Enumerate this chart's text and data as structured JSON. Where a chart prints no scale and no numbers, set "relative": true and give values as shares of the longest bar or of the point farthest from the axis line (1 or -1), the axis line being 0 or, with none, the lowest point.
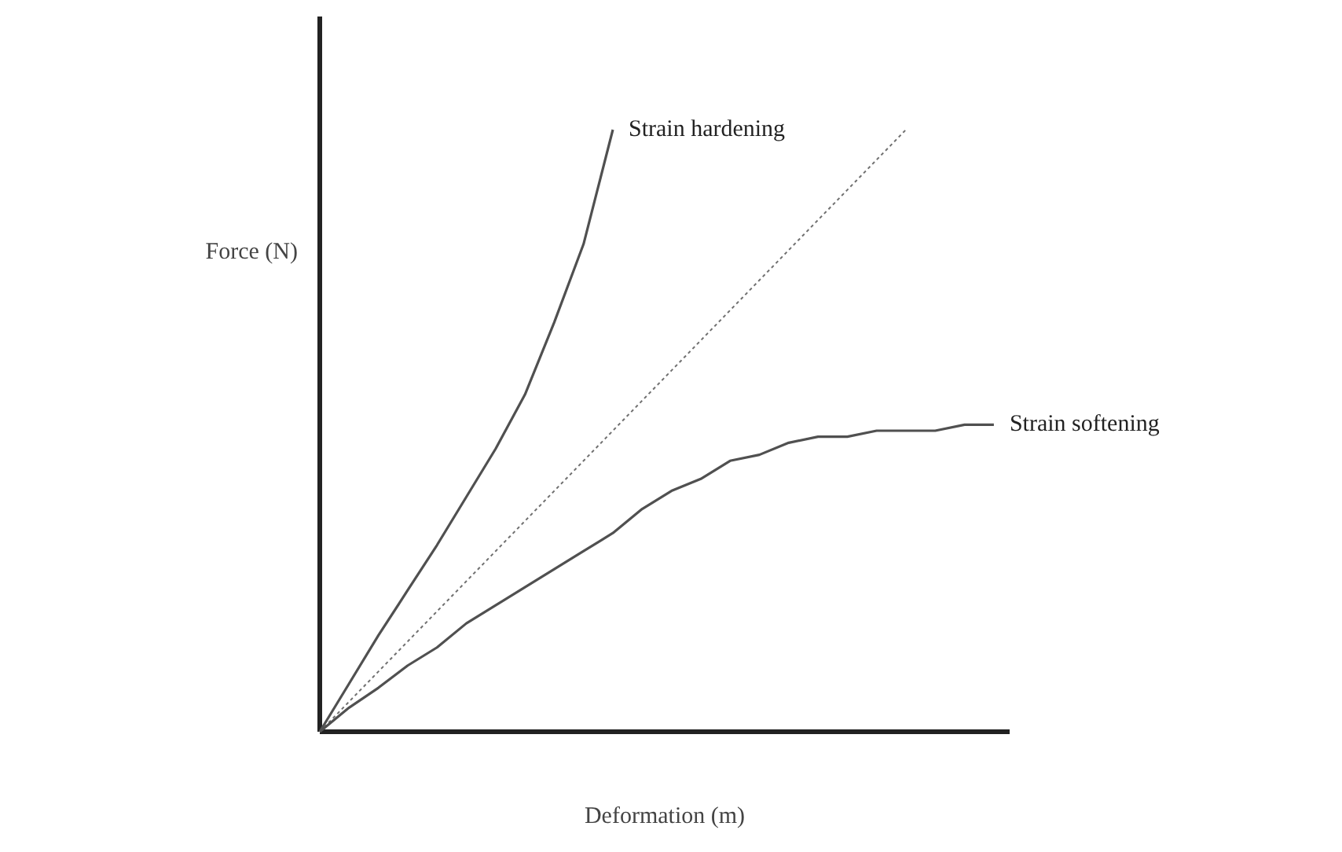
{
  "chart_data": {
    "type": "line",
    "relative": true,
    "xlabel": "Deformation (m)",
    "ylabel": "Force (N)",
    "marker": "none",
    "categories": [
      null,
      null,
      null,
      null,
      null,
      null,
      null,
      null,
      null,
      null,
      null,
      null,
      null,
      null,
      null,
      null,
      null,
      null,
      null,
      null,
      null,
      null,
      null,
      null
    ],
    "series": [
      {
        "name": "Strain hardening",
        "color": "#505050",
        "line_style": "solid",
        "values": [
          0,
          0.08,
          0.16,
          0.235,
          0.31,
          0.39,
          0.47,
          0.56,
          0.68,
          0.81,
          1.0,
          null,
          null,
          null,
          null,
          null,
          null,
          null,
          null,
          null,
          null,
          null,
          null,
          null
        ]
      },
      {
        "color": "#707070",
        "line_style": "dotted",
        "values": [
          0,
          0.05,
          0.1,
          0.15,
          0.2,
          0.25,
          0.3,
          0.35,
          0.4,
          0.45,
          0.5,
          0.55,
          0.6,
          0.65,
          0.7,
          0.75,
          0.8,
          0.85,
          0.9,
          0.95,
          1.0,
          null,
          null,
          null
        ]
      },
      {
        "name": "Strain softening",
        "color": "#505050",
        "line_style": "solid",
        "values": [
          0,
          0.04,
          0.073,
          0.11,
          0.14,
          0.18,
          0.21,
          0.24,
          0.27,
          0.3,
          0.33,
          0.37,
          0.4,
          0.42,
          0.45,
          0.46,
          0.48,
          0.49,
          0.49,
          0.5,
          0.5,
          0.5,
          0.51,
          0.51
        ]
      }
    ]
  }
}
